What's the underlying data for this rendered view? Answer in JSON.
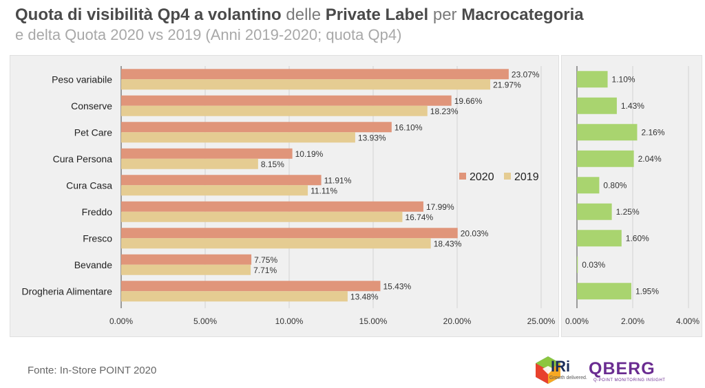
{
  "header": {
    "title_parts": [
      {
        "text": "Quota di visibilità Qp4 a volantino",
        "bold": true
      },
      {
        "text": " delle ",
        "bold": false
      },
      {
        "text": "Private Label",
        "bold": true
      },
      {
        "text": " per ",
        "bold": false
      },
      {
        "text": "Macrocategoria",
        "bold": true
      }
    ],
    "subtitle": "e delta Quota 2020 vs 2019 (Anni 2019-2020; quota Qp4)"
  },
  "chart_data": [
    {
      "type": "bar",
      "orientation": "horizontal",
      "categories": [
        "Peso variabile",
        "Conserve",
        "Pet Care",
        "Cura Persona",
        "Cura Casa",
        "Freddo",
        "Fresco",
        "Bevande",
        "Drogheria Alimentare"
      ],
      "series": [
        {
          "name": "2020",
          "values": [
            23.07,
            19.66,
            16.1,
            10.19,
            11.91,
            17.99,
            20.03,
            7.75,
            15.43
          ],
          "labels": [
            "23.07%",
            "19.66%",
            "16.10%",
            "10.19%",
            "11.91%",
            "17.99%",
            "20.03%",
            "7.75%",
            "15.43%"
          ],
          "color": "#e0957a"
        },
        {
          "name": "2019",
          "values": [
            21.97,
            18.23,
            13.93,
            8.15,
            11.11,
            16.74,
            18.43,
            7.71,
            13.48
          ],
          "labels": [
            "21.97%",
            "18.23%",
            "13.93%",
            "8.15%",
            "11.11%",
            "16.74%",
            "18.43%",
            "7.71%",
            "13.48%"
          ],
          "color": "#e5cc92"
        }
      ],
      "xlim": [
        0,
        25
      ],
      "xticks": [
        "0.00%",
        "5.00%",
        "10.00%",
        "15.00%",
        "20.00%",
        "25.00%"
      ],
      "grid": true,
      "legend": "right-middle"
    },
    {
      "type": "bar",
      "orientation": "horizontal",
      "categories": [
        "Peso variabile",
        "Conserve",
        "Pet Care",
        "Cura Persona",
        "Cura Casa",
        "Freddo",
        "Fresco",
        "Bevande",
        "Drogheria Alimentare"
      ],
      "series": [
        {
          "values": [
            1.1,
            1.43,
            2.16,
            2.04,
            0.8,
            1.25,
            1.6,
            0.03,
            1.95
          ],
          "labels": [
            "1.10%",
            "1.43%",
            "2.16%",
            "2.04%",
            "0.80%",
            "1.25%",
            "1.60%",
            "0.03%",
            "1.95%"
          ],
          "color": "#a9d46f"
        }
      ],
      "xlim": [
        0,
        4
      ],
      "xticks": [
        "0.00%",
        "2.00%",
        "4.00%"
      ],
      "grid": true
    }
  ],
  "footer": {
    "source": "Fonte: In-Store POINT 2020",
    "iri_logo": "IRi",
    "iri_tagline": "Growth delivered.",
    "qberg_logo": "QBERG",
    "qberg_tagline": "Q-POINT MONITORING INSIGHT"
  }
}
